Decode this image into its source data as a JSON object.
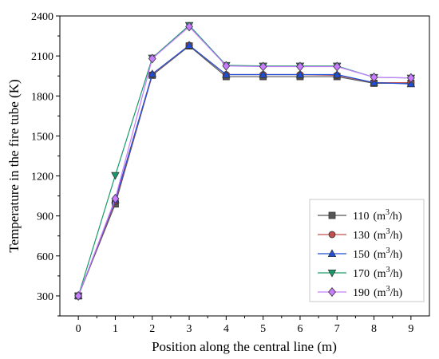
{
  "chart_data": {
    "type": "line",
    "title": "",
    "xlabel": "Position along the central line (m)",
    "ylabel": "Temperature in the fire tube (K)",
    "x": [
      0,
      1,
      2,
      3,
      4,
      5,
      6,
      7,
      8,
      9
    ],
    "xlim": [
      -0.5,
      9.5
    ],
    "ylim": [
      150,
      2400
    ],
    "xticks": [
      0,
      1,
      2,
      3,
      4,
      5,
      6,
      7,
      8,
      9
    ],
    "yticks": [
      300,
      600,
      900,
      1200,
      1500,
      1800,
      2100,
      2400
    ],
    "grid": false,
    "legend_position": "bottom-right",
    "series": [
      {
        "name": "110",
        "unit": "m",
        "sup": "3",
        "unit_tail": "/h",
        "color": "#555555",
        "marker": "square",
        "values": [
          300,
          990,
          1955,
          2175,
          1945,
          1945,
          1945,
          1945,
          1895,
          1895
        ]
      },
      {
        "name": "130",
        "unit": "m",
        "sup": "3",
        "unit_tail": "/h",
        "color": "#c0504d",
        "marker": "circle",
        "values": [
          300,
          1010,
          1960,
          2180,
          1960,
          1960,
          1960,
          1955,
          1900,
          1900
        ]
      },
      {
        "name": "150",
        "unit": "m",
        "sup": "3",
        "unit_tail": "/h",
        "color": "#1f4fd8",
        "marker": "triangle-up",
        "values": [
          300,
          1020,
          1965,
          2180,
          1960,
          1960,
          1960,
          1960,
          1900,
          1890
        ]
      },
      {
        "name": "170",
        "unit": "m",
        "sup": "3",
        "unit_tail": "/h",
        "color": "#1a9a6b",
        "marker": "triangle-down",
        "values": [
          300,
          1205,
          2085,
          2330,
          2030,
          2025,
          2025,
          2025,
          1940,
          1935
        ]
      },
      {
        "name": "190",
        "unit": "m",
        "sup": "3",
        "unit_tail": "/h",
        "color": "#c77dff",
        "marker": "diamond",
        "values": [
          300,
          1030,
          2080,
          2320,
          2025,
          2020,
          2020,
          2020,
          1940,
          1935
        ]
      }
    ]
  }
}
